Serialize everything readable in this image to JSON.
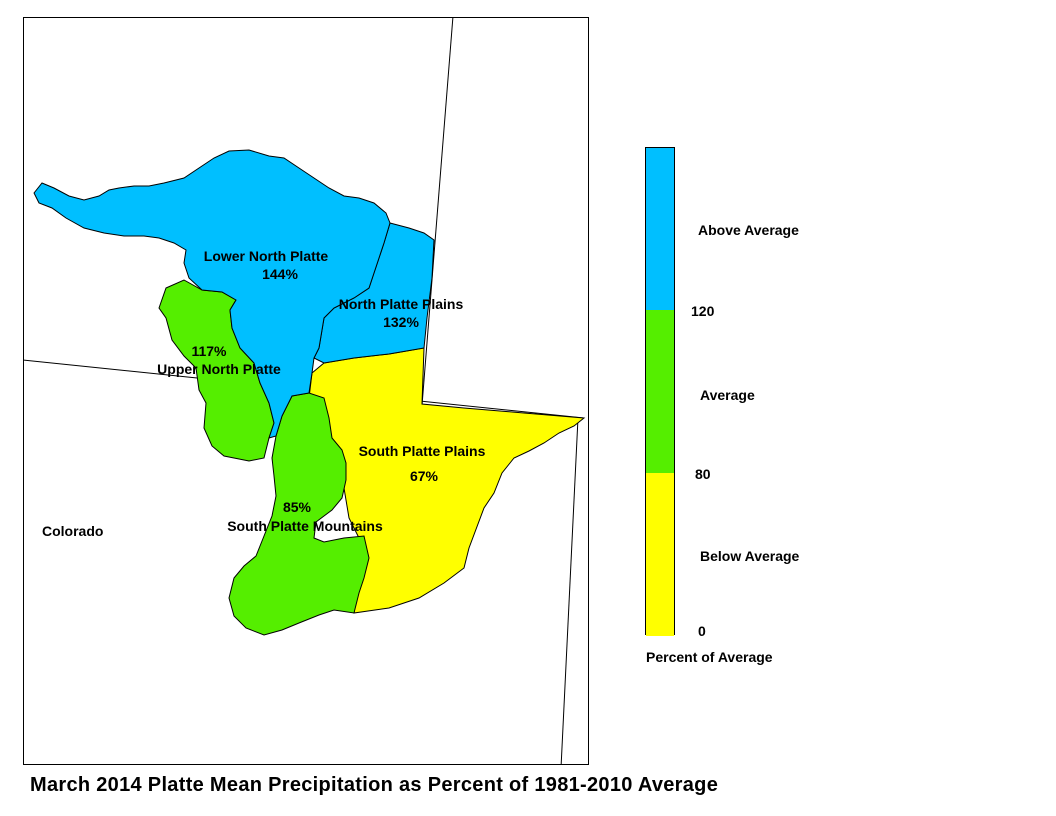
{
  "title": "March 2014 Platte Mean Precipitation as Percent of 1981-2010 Average",
  "map": {
    "state_label": "Colorado",
    "basins": [
      {
        "name": "Lower North Platte",
        "percent": "144%",
        "category": "Above Average"
      },
      {
        "name": "North Platte Plains",
        "percent": "132%",
        "category": "Above Average"
      },
      {
        "name": "Upper North Platte",
        "percent": "117%",
        "category": "Average"
      },
      {
        "name": "South Platte Plains",
        "percent": "67%",
        "category": "Below Average"
      },
      {
        "name": "South Platte Mountains",
        "percent": "85%",
        "category": "Average"
      }
    ]
  },
  "legend": {
    "title": "Percent of Average",
    "categories": [
      {
        "label": "Above Average",
        "color": "#00BFFF"
      },
      {
        "label": "Average",
        "color": "#55EE00"
      },
      {
        "label": "Below Average",
        "color": "#FFFF00"
      }
    ],
    "breaks": [
      "120",
      "80",
      "0"
    ]
  },
  "colors": {
    "above": "#00BFFF",
    "average": "#55EE00",
    "below": "#FFFF00"
  }
}
